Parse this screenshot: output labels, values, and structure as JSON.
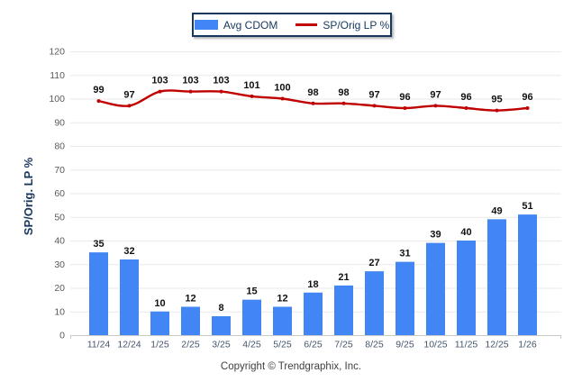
{
  "legend": {
    "items": [
      {
        "label": "Avg CDOM",
        "type": "bar",
        "color": "#4285f4"
      },
      {
        "label": "SP/Orig LP %",
        "type": "line",
        "color": "#c00000"
      }
    ]
  },
  "footer": {
    "copyright": "Copyright © Trendgraphix, Inc."
  },
  "colors": {
    "bar": "#4285f4",
    "line": "#c00000",
    "grid": "#e9e9e9",
    "axis": "#c9c9c9",
    "tick_text": "#595959",
    "xtick_text": "#44546a",
    "value_text": "#111111",
    "axis_title": "#17375e",
    "legend_border": "#17375e"
  },
  "chart_data": {
    "type": "combo",
    "categories": [
      "11/24",
      "12/24",
      "1/25",
      "2/25",
      "3/25",
      "4/25",
      "5/25",
      "6/25",
      "7/25",
      "8/25",
      "9/25",
      "10/25",
      "11/25",
      "12/25",
      "1/26"
    ],
    "series": [
      {
        "name": "Avg CDOM",
        "type": "bar",
        "color": "#4285f4",
        "values": [
          35,
          32,
          10,
          12,
          8,
          15,
          12,
          18,
          21,
          27,
          31,
          39,
          40,
          49,
          51
        ]
      },
      {
        "name": "SP/Orig LP %",
        "type": "line",
        "color": "#c00000",
        "values": [
          99,
          97,
          103,
          103,
          103,
          101,
          100,
          98,
          98,
          97,
          96,
          97,
          96,
          95,
          96
        ]
      }
    ],
    "title": "",
    "xlabel": "",
    "ylabel": "SP/Orig. LP %",
    "ylim": [
      0,
      120
    ],
    "ytick_step": 10,
    "grid": true,
    "legend_position": "top",
    "value_labels": true
  }
}
